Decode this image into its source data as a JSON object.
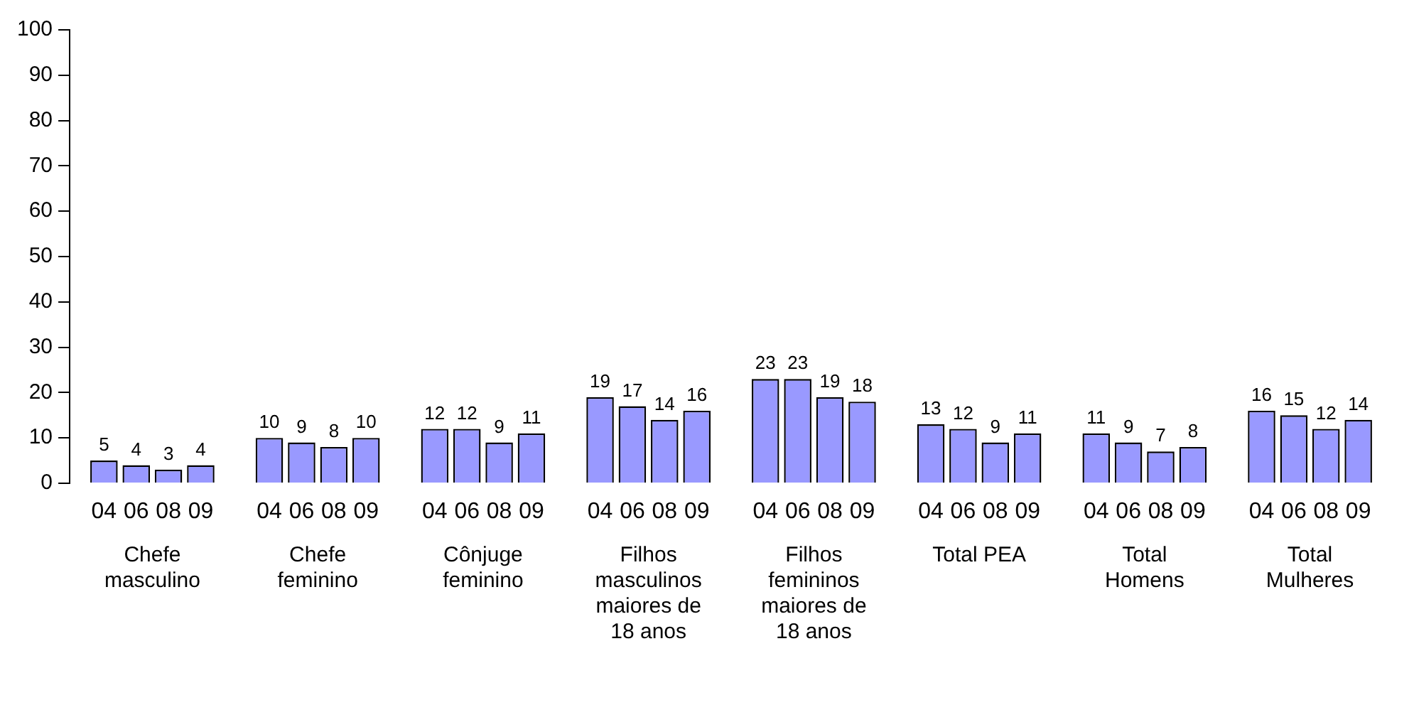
{
  "chart_data": {
    "type": "bar",
    "categories": [
      "Chefe masculino",
      "Chefe feminino",
      "Cônjuge feminino",
      "Filhos masculinos maiores de 18 anos",
      "Filhos femininos maiores de 18 anos",
      "Total PEA",
      "Total Homens",
      "Total Mulheres"
    ],
    "series": [
      {
        "name": "04",
        "color": "#9999ff",
        "values": [
          5,
          10,
          12,
          19,
          23,
          13,
          11,
          16
        ]
      },
      {
        "name": "06",
        "color": "#9999ff",
        "values": [
          4,
          9,
          12,
          17,
          23,
          12,
          9,
          15
        ]
      },
      {
        "name": "08",
        "color": "#9999ff",
        "values": [
          3,
          8,
          9,
          14,
          19,
          9,
          7,
          12
        ]
      },
      {
        "name": "09",
        "color": "#9999ff",
        "values": [
          4,
          10,
          11,
          16,
          18,
          11,
          8,
          14
        ]
      }
    ],
    "ylim": [
      0,
      100
    ],
    "yticks": [
      0,
      10,
      20,
      30,
      40,
      50,
      60,
      70,
      80,
      90,
      100
    ],
    "grid": false,
    "legend": false,
    "data_labels": true
  }
}
